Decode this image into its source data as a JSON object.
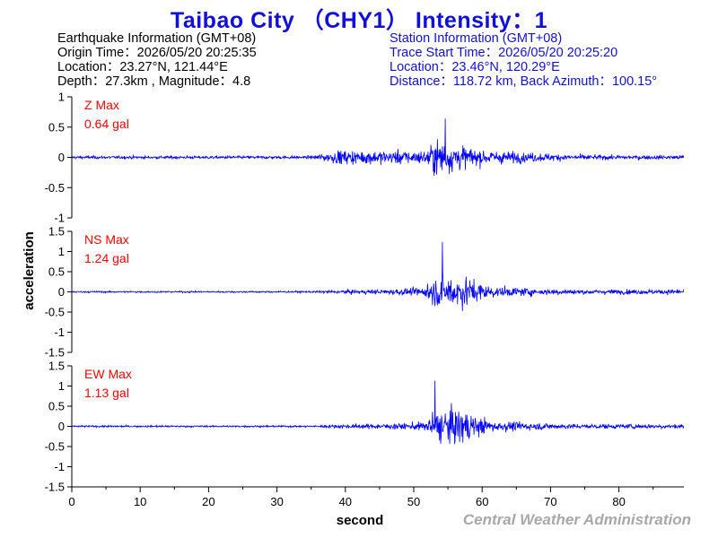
{
  "title": "Taibao City （CHY1） Intensity：1",
  "earthquake": {
    "header": "Earthquake Information  (GMT+08)",
    "origin": "Origin Time：2026/05/20 20:25:35",
    "location": "Location：23.27°N, 121.44°E",
    "depth": "Depth：27.3km , Magnitude：4.8"
  },
  "station": {
    "header": "Station Information  (GMT+08)",
    "trace_start": "Trace Start Time：2026/05/20 20:25:20",
    "location": "Location：23.46°N, 120.29°E",
    "distance": "Distance：118.72 km, Back Azimuth：100.15°"
  },
  "footer": "Central Weather Administration",
  "colors": {
    "trace": "#0000ff",
    "max_label": "#ff0000",
    "title": "#1010d8"
  },
  "chart_data": {
    "type": "line",
    "xlabel": "second",
    "ylabel": "acceleration",
    "xlim": [
      0,
      89.5
    ],
    "xticks": [
      0,
      10,
      20,
      30,
      40,
      50,
      60,
      70,
      80
    ],
    "panels": [
      {
        "name": "Z Max",
        "max_label": "Z Max",
        "max_value": "0.64 gal",
        "ylim": [
          -1,
          1
        ],
        "yticks": [
          -1,
          -0.5,
          0,
          0.5,
          1
        ],
        "ytick_labels": [
          "-1",
          "-0.5",
          "0",
          "0.5",
          "1"
        ],
        "peak": 0.64
      },
      {
        "name": "NS Max",
        "max_label": "NS Max",
        "max_value": "1.24 gal",
        "ylim": [
          -1.5,
          1.5
        ],
        "yticks": [
          -1.5,
          -1,
          -0.5,
          0,
          0.5,
          1,
          1.5
        ],
        "ytick_labels": [
          "-1.5",
          "-1",
          "-0.5",
          "0",
          "0.5",
          "1",
          "1.5"
        ],
        "peak": 1.24
      },
      {
        "name": "EW Max",
        "max_label": "EW Max",
        "max_value": "1.13 gal",
        "ylim": [
          -1.5,
          1.5
        ],
        "yticks": [
          -1.5,
          -1,
          -0.5,
          0,
          0.5,
          1,
          1.5
        ],
        "ytick_labels": [
          "-1.5",
          "-1",
          "-0.5",
          "0",
          "0.5",
          "1",
          "1.5"
        ],
        "peak": 1.13
      }
    ]
  }
}
